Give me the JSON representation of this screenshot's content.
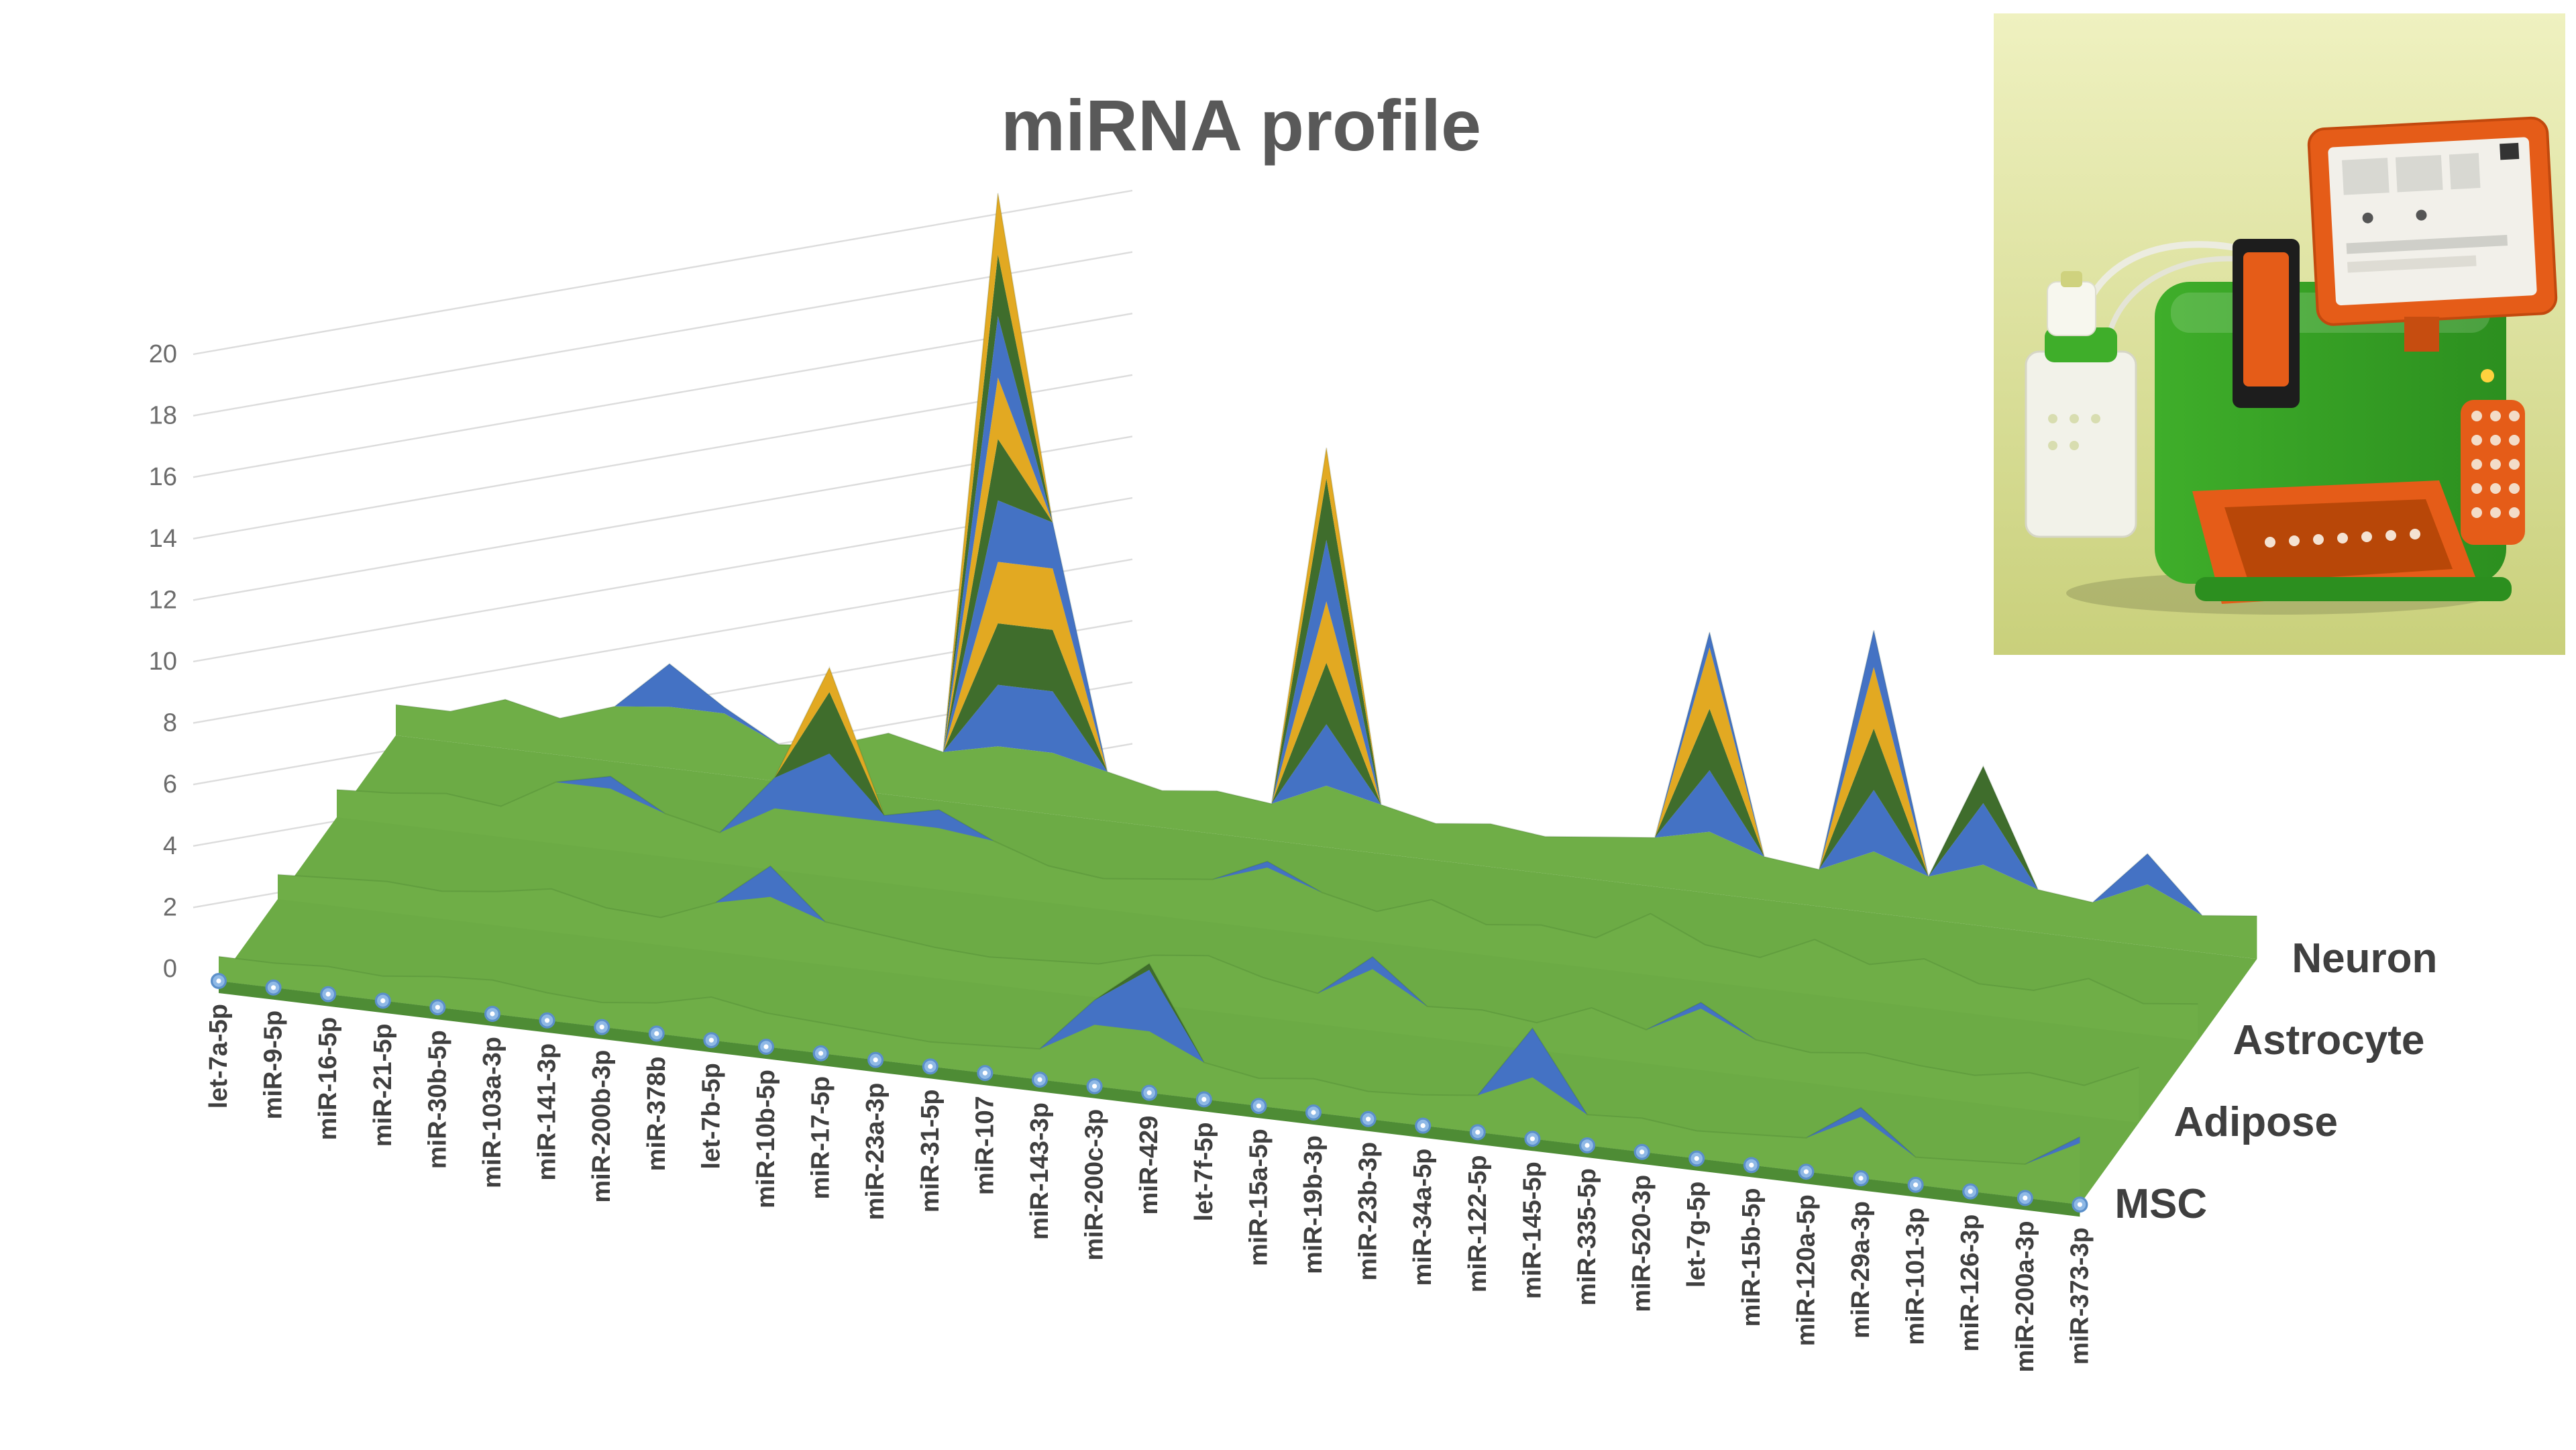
{
  "page": {
    "background": "#ffffff"
  },
  "chart_data": {
    "type": "surface",
    "title": "miRNA profile",
    "categories": [
      "let-7a-5p",
      "miR-9-5p",
      "miR-16-5p",
      "miR-21-5p",
      "miR-30b-5p",
      "miR-103a-3p",
      "miR-141-3p",
      "miR-200b-3p",
      "miR-378b",
      "let-7b-5p",
      "miR-10b-5p",
      "miR-17-5p",
      "miR-23a-3p",
      "miR-31-5p",
      "miR-107",
      "miR-143-3p",
      "miR-200c-3p",
      "miR-429",
      "let-7f-5p",
      "miR-15a-5p",
      "miR-19b-3p",
      "miR-23b-3p",
      "miR-34a-5p",
      "miR-122-5p",
      "miR-145-5p",
      "miR-335-5p",
      "miR-520-3p",
      "let-7g-5p",
      "miR-15b-5p",
      "miR-120a-5p",
      "miR-29a-3p",
      "miR-101-3p",
      "miR-126-3p",
      "miR-200a-3p",
      "miR-373-3p"
    ],
    "series": [
      {
        "name": "Neuron",
        "values": [
          1,
          1,
          1.6,
          1.2,
          1.8,
          3.4,
          2.2,
          1.2,
          1.4,
          2,
          1.6,
          20,
          9.5,
          1.6,
          1.2,
          1.4,
          1.2,
          13,
          1.6,
          1.2,
          1.4,
          1.2,
          1.4,
          1.6,
          8.5,
          1.4,
          1.2,
          9.2,
          1.4,
          5.2,
          1.4,
          1.2,
          3,
          1.2,
          1.4
        ]
      },
      {
        "name": "Astrocyte",
        "values": [
          0.9,
          1,
          1.2,
          1,
          2,
          2.4,
          1.4,
          1,
          3,
          6.8,
          2.2,
          2.6,
          1.8,
          1.2,
          1,
          1.2,
          1.4,
          2.2,
          1.4,
          1,
          1.6,
          1,
          1.2,
          1,
          2,
          1.2,
          1,
          1.8,
          1.2,
          1.6,
          1,
          1,
          1.6,
          1,
          1.2
        ]
      },
      {
        "name": "Adipose",
        "values": [
          0.8,
          0.9,
          1,
          0.9,
          1.1,
          1.4,
          1,
          0.9,
          1.6,
          3,
          1.4,
          1.2,
          1,
          0.9,
          1,
          1.1,
          1.6,
          1.8,
          1.3,
          1,
          2.4,
          1,
          1.1,
          0.9,
          1.6,
          1.1,
          2.2,
          1.2,
          1,
          1.2,
          1,
          0.9,
          1.2,
          1,
          1.8
        ]
      },
      {
        "name": "MSC",
        "values": [
          0.8,
          0.8,
          0.9,
          0.8,
          1,
          1.1,
          0.9,
          0.8,
          1,
          1.4,
          1.1,
          1,
          0.9,
          0.8,
          0.9,
          1,
          2.8,
          4.2,
          1.2,
          0.9,
          1.1,
          0.9,
          1,
          1.2,
          3.6,
          1,
          1.1,
          0.9,
          1,
          1.1,
          2.3,
          0.9,
          1,
          1.1,
          2.2
        ]
      }
    ],
    "value_axis": {
      "min": 0,
      "max": 20,
      "step": 2,
      "ticks": [
        0,
        2,
        4,
        6,
        8,
        10,
        12,
        14,
        16,
        18,
        20
      ]
    },
    "grid": true,
    "legend_position": "right-of-plot-row-labels",
    "band_colors": {
      "green": "#6fae47",
      "blue": "#4472c4",
      "dark_green": "#3f6d2c",
      "yellow": "#e2a922",
      "floor": "#6cab45",
      "front_rim": "#4e8c35"
    },
    "marker_color": "#8fb9e6",
    "marker_ring_color": "#5b8fc9",
    "label_color": "#3f3f3f",
    "axis_text_color": "#6b6b6b",
    "title_color": "#595959",
    "gridline_color": "#dcdcdc"
  },
  "photo": {
    "name": "real-time PCR laboratory instrument",
    "colors": {
      "bg_top": "#eff1c0",
      "bg_bottom": "#c9d07b",
      "machine_green": "#3fae2a",
      "machine_green_dark": "#2c8f1f",
      "machine_orange": "#e55c18",
      "machine_orange_dark": "#b84708",
      "screen": "#f2f0ea",
      "tube_white": "#ecece0"
    }
  }
}
